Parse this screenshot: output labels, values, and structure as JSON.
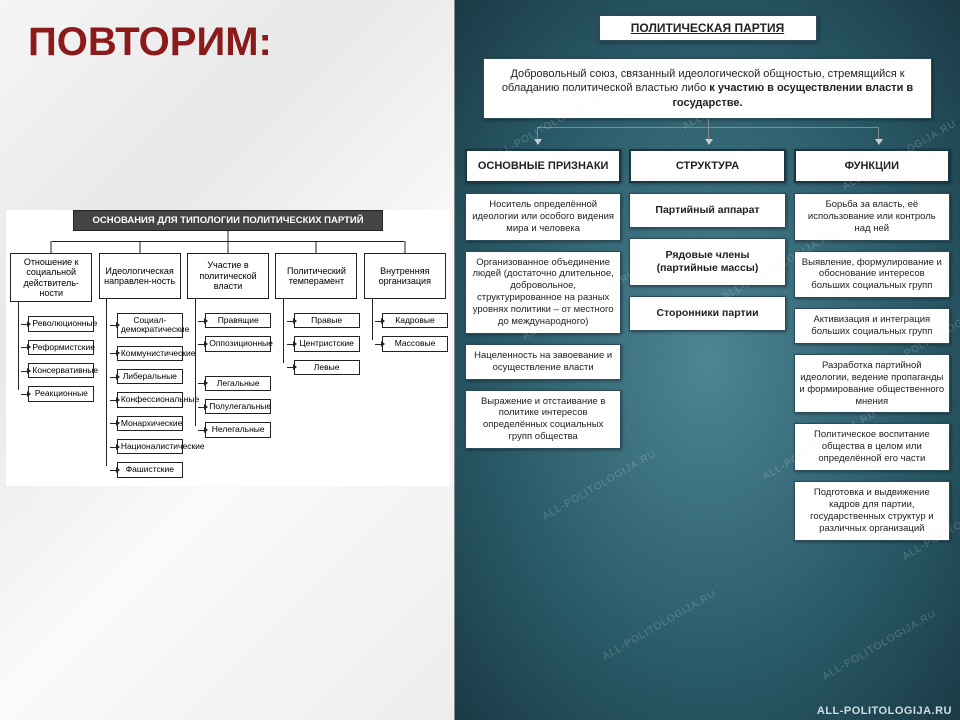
{
  "title": "ПОВТОРИМ:",
  "left": {
    "header": "ОСНОВАНИЯ ДЛЯ ТИПОЛОГИИ ПОЛИТИЧЕСКИХ ПАРТИЙ",
    "cols": [
      {
        "head": "Отношение к социальной действитель-ности",
        "items": [
          "Революционные",
          "Реформистские",
          "Консервативные",
          "Реакционные"
        ]
      },
      {
        "head": "Идеологическая направлен-ность",
        "items": [
          "Социал-демократические",
          "Коммунистические",
          "Либеральные",
          "Конфессиональные",
          "Монархические",
          "Националистические",
          "Фашистские"
        ]
      },
      {
        "head": "Участие в политической власти",
        "items": [
          "Правящие",
          "Оппозиционные",
          "",
          "Легальные",
          "Полулегальные",
          "Нелегальные"
        ]
      },
      {
        "head": "Политический темперамент",
        "items": [
          "Правые",
          "Центристские",
          "Левые"
        ]
      },
      {
        "head": "Внутренняя организация",
        "items": [
          "Кадровые",
          "Массовые"
        ]
      }
    ]
  },
  "right": {
    "header": "ПОЛИТИЧЕСКАЯ ПАРТИЯ",
    "definition_plain": "Добровольный союз, связанный идеологической общностью, стремящийся к обладанию политической властью либо ",
    "definition_bold": "к участию в осуществлении власти в государстве.",
    "watermark": "ALL-POLITOLOGIJA.RU",
    "cols": [
      {
        "head": "ОСНОВНЫЕ ПРИЗНАКИ",
        "boxes": [
          {
            "t": "Носитель определённой идеологии или особого видения мира и человека",
            "b": false
          },
          {
            "t": "Организованное объединение людей (достаточно длительное, добровольное, структурированное на разных уровнях политики – от местного до международного)",
            "b": false
          },
          {
            "t": "Нацеленность на завоевание и осуществление власти",
            "b": false
          },
          {
            "t": "Выражение и отстаивание в политике интересов определённых социальных групп общества",
            "b": false
          }
        ]
      },
      {
        "head": "СТРУКТУРА",
        "boxes": [
          {
            "t": "Партийный аппарат",
            "b": true
          },
          {
            "t": "Рядовые члены (партийные массы)",
            "b": true
          },
          {
            "t": "Сторонники партии",
            "b": true
          }
        ]
      },
      {
        "head": "ФУНКЦИИ",
        "boxes": [
          {
            "t": "Борьба за власть, её использование или контроль над ней",
            "b": false
          },
          {
            "t": "Выявление, формулирование и обоснование интересов больших социальных групп",
            "b": false
          },
          {
            "t": "Активизация и интеграция больших социальных групп",
            "b": false
          },
          {
            "t": "Разработка партийной идеологии, ведение пропаганды и формирование общественного мнения",
            "b": false
          },
          {
            "t": "Политическое воспитание общества в целом или определённой его части",
            "b": false
          },
          {
            "t": "Подготовка и выдвижение кадров для партии, государственных структур и различных организаций",
            "b": false
          }
        ]
      }
    ]
  },
  "colors": {
    "title": "#8b1a1a",
    "right_bg_inner": "#4d8695",
    "right_bg_outer": "#1a3a45",
    "box_border": "#2c4a5a"
  }
}
